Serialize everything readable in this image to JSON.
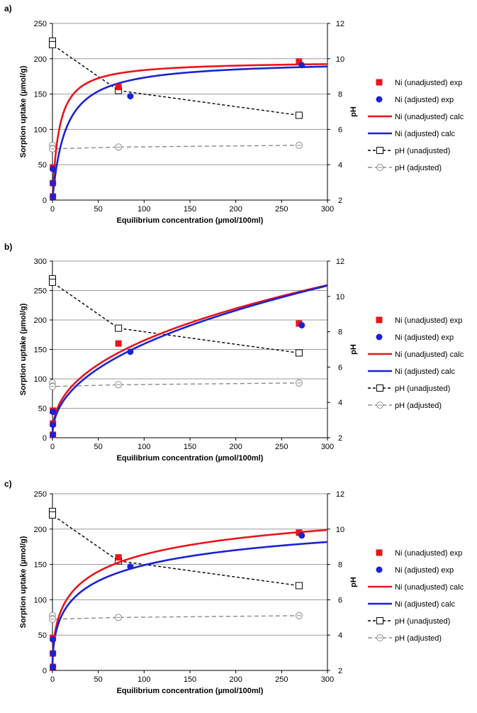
{
  "colors": {
    "unadjusted": "#e8151b",
    "adjusted": "#1c22d4",
    "ph_unadjusted": "#000000",
    "ph_adjusted": "#8c8c8c",
    "grid": "#9a9a9a"
  },
  "chart_data": [
    {
      "type": "line",
      "panel_label": "a)",
      "model": "langmuir",
      "xlabel": "Equilibrium concentration (µmol/100ml)",
      "ylabel": "Sorption uptake (µmol/g)",
      "y2label": "pH",
      "xlim": [
        0,
        300
      ],
      "ylim": [
        0,
        250
      ],
      "y2lim": [
        2,
        12
      ],
      "x_ticks": [
        "0",
        "50",
        "100",
        "150",
        "200",
        "250",
        "300"
      ],
      "y_ticks": [
        "0",
        "50",
        "100",
        "150",
        "200",
        "250"
      ],
      "y2_ticks": [
        "2",
        "4",
        "6",
        "8",
        "10",
        "12"
      ],
      "series": [
        {
          "name": "Ni (unadjusted) exp",
          "kind": "scatter",
          "marker": "square",
          "x": [
            0.5,
            0.5,
            0.5,
            72,
            269
          ],
          "y": [
            5,
            24,
            46,
            160,
            196
          ]
        },
        {
          "name": "Ni (adjusted) exp",
          "kind": "scatter",
          "marker": "circle",
          "x": [
            0.5,
            0.5,
            0.5,
            85,
            272
          ],
          "y": [
            5,
            24,
            44,
            147,
            191
          ]
        },
        {
          "name": "Ni (unadjusted) calc",
          "kind": "curve",
          "params": {
            "qmax": 197,
            "K": 0.14
          }
        },
        {
          "name": "Ni (adjusted) calc",
          "kind": "curve",
          "params": {
            "qmax": 198,
            "K": 0.07
          }
        },
        {
          "name": "pH (unadjusted)",
          "kind": "ph",
          "marker": "square-open",
          "x": [
            0,
            0,
            72,
            269
          ],
          "y": [
            11.0,
            10.8,
            8.2,
            6.8
          ]
        },
        {
          "name": "pH (adjusted)",
          "kind": "ph",
          "marker": "circle-open",
          "x": [
            0,
            0,
            72,
            269
          ],
          "y": [
            5.1,
            4.9,
            5.0,
            5.1
          ]
        }
      ]
    },
    {
      "type": "line",
      "panel_label": "b)",
      "model": "freundlich",
      "xlabel": "Equilibrium concentration (µmol/100ml)",
      "ylabel": "Sorption uptake (µmol/g)",
      "y2label": "pH",
      "xlim": [
        0,
        300
      ],
      "ylim": [
        0,
        300
      ],
      "y2lim": [
        2,
        12
      ],
      "x_ticks": [
        "0",
        "50",
        "100",
        "150",
        "200",
        "250",
        "300"
      ],
      "y_ticks": [
        "0",
        "50",
        "100",
        "150",
        "200",
        "250",
        "300"
      ],
      "y2_ticks": [
        "2",
        "4",
        "6",
        "8",
        "10",
        "12"
      ],
      "series": [
        {
          "name": "Ni (unadjusted) exp",
          "kind": "scatter",
          "marker": "square",
          "x": [
            0.5,
            0.5,
            0.5,
            72,
            269
          ],
          "y": [
            5,
            24,
            46,
            160,
            194
          ]
        },
        {
          "name": "Ni (adjusted) exp",
          "kind": "scatter",
          "marker": "circle",
          "x": [
            0.5,
            0.5,
            0.5,
            85,
            272
          ],
          "y": [
            5,
            22,
            44,
            146,
            191
          ]
        },
        {
          "name": "Ni (unadjusted) calc",
          "kind": "curve",
          "params": {
            "Kf": 25.0,
            "n": 0.41
          }
        },
        {
          "name": "Ni (adjusted) calc",
          "kind": "curve",
          "params": {
            "Kf": 21.0,
            "n": 0.44
          }
        },
        {
          "name": "pH (unadjusted)",
          "kind": "ph",
          "marker": "square-open",
          "x": [
            0,
            0,
            72,
            269
          ],
          "y": [
            11.0,
            10.8,
            8.2,
            6.8
          ]
        },
        {
          "name": "pH (adjusted)",
          "kind": "ph",
          "marker": "circle-open",
          "x": [
            0,
            0,
            72,
            269
          ],
          "y": [
            5.1,
            4.9,
            5.0,
            5.1
          ]
        }
      ]
    },
    {
      "type": "line",
      "panel_label": "c)",
      "model": "sips",
      "xlabel": "Equilibrium concentration (µmol/100ml)",
      "ylabel": "Sorption uptake (µmol/g)",
      "y2label": "pH",
      "xlim": [
        0,
        300
      ],
      "ylim": [
        0,
        250
      ],
      "y2lim": [
        2,
        12
      ],
      "x_ticks": [
        "0",
        "50",
        "100",
        "150",
        "200",
        "250",
        "300"
      ],
      "y_ticks": [
        "0",
        "50",
        "100",
        "150",
        "200",
        "250"
      ],
      "y2_ticks": [
        "2",
        "4",
        "6",
        "8",
        "10",
        "12"
      ],
      "series": [
        {
          "name": "Ni (unadjusted) exp",
          "kind": "scatter",
          "marker": "square",
          "x": [
            0.5,
            0.5,
            0.5,
            72,
            269
          ],
          "y": [
            5,
            24,
            46,
            160,
            195
          ]
        },
        {
          "name": "Ni (adjusted) exp",
          "kind": "scatter",
          "marker": "circle",
          "x": [
            0.5,
            0.5,
            0.5,
            85,
            272
          ],
          "y": [
            5,
            24,
            44,
            147,
            191
          ]
        },
        {
          "name": "Ni (unadjusted) calc",
          "kind": "curve",
          "params": {
            "qmax": 280,
            "K": 0.02,
            "n": 0.5
          }
        },
        {
          "name": "Ni (adjusted) calc",
          "kind": "curve",
          "params": {
            "qmax": 260,
            "K": 0.018,
            "n": 0.5
          }
        },
        {
          "name": "pH (unadjusted)",
          "kind": "ph",
          "marker": "square-open",
          "x": [
            0,
            0,
            72,
            269
          ],
          "y": [
            11.0,
            10.8,
            8.2,
            6.8
          ]
        },
        {
          "name": "pH (adjusted)",
          "kind": "ph",
          "marker": "circle-open",
          "x": [
            0,
            0,
            72,
            269
          ],
          "y": [
            5.1,
            4.9,
            5.0,
            5.1
          ]
        }
      ]
    }
  ]
}
